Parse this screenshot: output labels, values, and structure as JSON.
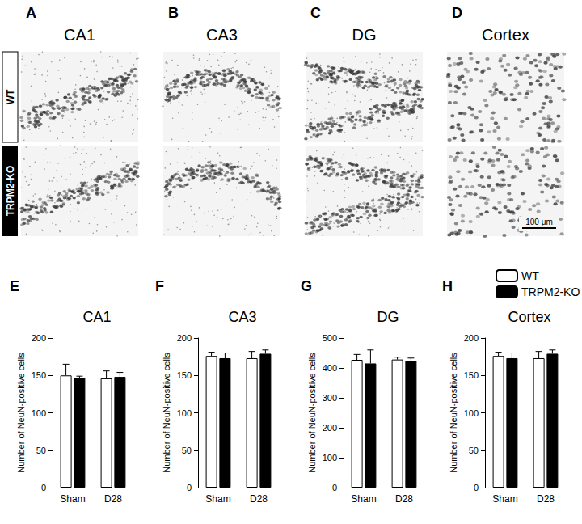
{
  "micrographs": {
    "panels": [
      "A",
      "B",
      "C",
      "D"
    ],
    "regions": [
      "CA1",
      "CA3",
      "DG",
      "Cortex"
    ],
    "rows": [
      "WT",
      "TRPM2-KO"
    ],
    "scale_bar": "100 μm"
  },
  "chart_data": [
    {
      "type": "bar",
      "panel": "E",
      "title": "CA1",
      "y_label": "Number of NeuN-positive cells",
      "categories": [
        "Sham",
        "D28"
      ],
      "series": [
        {
          "name": "WT",
          "color": "#ffffff",
          "values": [
            150,
            146
          ],
          "error": [
            15,
            10
          ]
        },
        {
          "name": "TRPM2-KO",
          "color": "#000000",
          "values": [
            147,
            148
          ],
          "error": [
            2,
            6
          ]
        }
      ],
      "ylim": [
        0,
        200
      ],
      "yticks": [
        0,
        50,
        100,
        150,
        200
      ],
      "grid": false
    },
    {
      "type": "bar",
      "panel": "F",
      "title": "CA3",
      "y_label": "Number of NeuN-positive cells",
      "categories": [
        "Sham",
        "D28"
      ],
      "series": [
        {
          "name": "WT",
          "color": "#ffffff",
          "values": [
            176,
            173
          ],
          "error": [
            5,
            9
          ]
        },
        {
          "name": "TRPM2-KO",
          "color": "#000000",
          "values": [
            173,
            179
          ],
          "error": [
            7,
            5
          ]
        }
      ],
      "ylim": [
        0,
        200
      ],
      "yticks": [
        0,
        50,
        100,
        150,
        200
      ],
      "grid": false
    },
    {
      "type": "bar",
      "panel": "G",
      "title": "DG",
      "y_label": "Number of NeuN-positive cells",
      "categories": [
        "Sham",
        "D28"
      ],
      "series": [
        {
          "name": "WT",
          "color": "#ffffff",
          "values": [
            427,
            428
          ],
          "error": [
            18,
            8
          ]
        },
        {
          "name": "TRPM2-KO",
          "color": "#000000",
          "values": [
            415,
            423
          ],
          "error": [
            45,
            10
          ]
        }
      ],
      "ylim": [
        0,
        500
      ],
      "yticks": [
        0,
        100,
        200,
        300,
        400,
        500
      ],
      "grid": false
    },
    {
      "type": "bar",
      "panel": "H",
      "title": "Cortex",
      "y_label": "Number of NeuN-positive cells",
      "categories": [
        "Sham",
        "D28"
      ],
      "series": [
        {
          "name": "WT",
          "color": "#ffffff",
          "values": [
            176,
            173
          ],
          "error": [
            5,
            9
          ]
        },
        {
          "name": "TRPM2-KO",
          "color": "#000000",
          "values": [
            173,
            179
          ],
          "error": [
            7,
            5
          ]
        }
      ],
      "ylim": [
        0,
        200
      ],
      "yticks": [
        0,
        50,
        100,
        150,
        200
      ],
      "grid": false,
      "legend": "top-right"
    }
  ]
}
